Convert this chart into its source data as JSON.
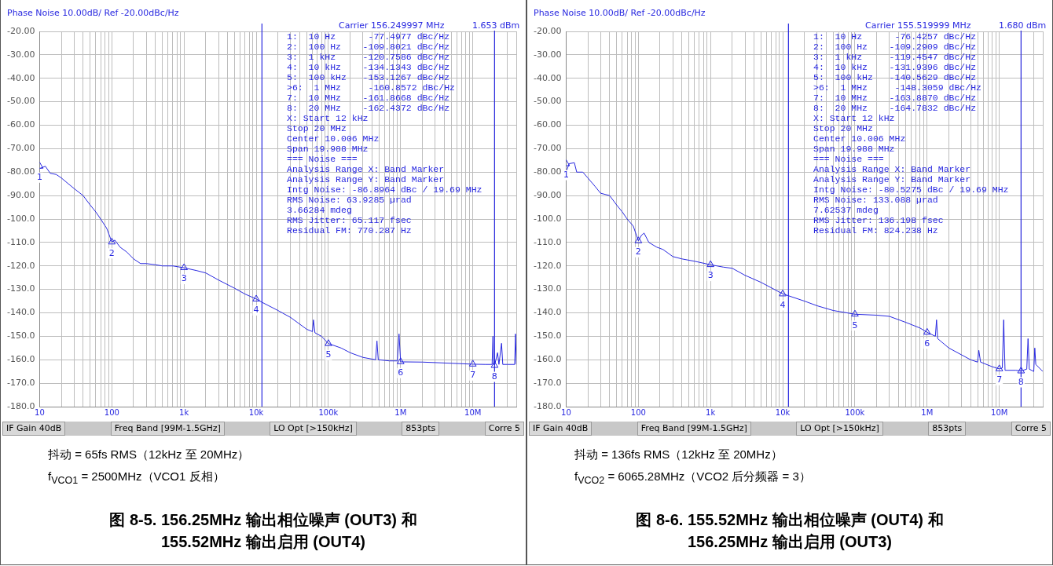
{
  "chart_data": [
    {
      "type": "line",
      "title": "图 8-5. 156.25MHz 输出相位噪声 (OUT3) 和 155.52MHz 输出启用 (OUT4)",
      "subtitle": "Phase Noise 10.00dB/ Ref -20.00dBc/Hz",
      "log": "x",
      "grid": true,
      "legend": false,
      "marker": "none",
      "line_style": "solid",
      "xlim": [
        10,
        40000000
      ],
      "xticks": [
        {
          "value": 10,
          "label": "10"
        },
        {
          "value": 100,
          "label": "100"
        },
        {
          "value": 1000,
          "label": "1k"
        },
        {
          "value": 10000,
          "label": "10k"
        },
        {
          "value": 100000,
          "label": "100k"
        },
        {
          "value": 1000000,
          "label": "1M"
        },
        {
          "value": 10000000,
          "label": "10M"
        }
      ],
      "ylim": [
        -180,
        -20
      ],
      "yticks": [
        {
          "value": -20,
          "label": "-20.00"
        },
        {
          "value": -30,
          "label": "-30.00"
        },
        {
          "value": -40,
          "label": "-40.00"
        },
        {
          "value": -50,
          "label": "-50.00"
        },
        {
          "value": -60,
          "label": "-60.00"
        },
        {
          "value": -70,
          "label": "-70.00"
        },
        {
          "value": -80,
          "label": "-80.00"
        },
        {
          "value": -90,
          "label": "-90.00"
        },
        {
          "value": -100,
          "label": "-100.0"
        },
        {
          "value": -110,
          "label": "-110.0"
        },
        {
          "value": -120,
          "label": "-120.0"
        },
        {
          "value": -130,
          "label": "-130.0"
        },
        {
          "value": -140,
          "label": "-140.0"
        },
        {
          "value": -150,
          "label": "-150.0"
        },
        {
          "value": -160,
          "label": "-160.0"
        },
        {
          "value": -170,
          "label": "-170.0"
        },
        {
          "value": -180,
          "label": "-180.0"
        }
      ],
      "ref_lines": [
        {
          "axis": "x",
          "value": 12000,
          "color": "#2828e0"
        },
        {
          "axis": "x",
          "value": 20000000,
          "color": "#2828e0"
        }
      ],
      "series": [
        {
          "color": "#2828e0",
          "x": [
            10,
            12,
            14,
            17,
            20,
            25,
            30,
            40,
            50,
            60,
            70,
            85,
            100,
            110,
            130,
            160,
            200,
            250,
            300,
            400,
            500,
            700,
            1000,
            1500,
            2000,
            3000,
            5000,
            7000,
            10000,
            12000,
            20000,
            30000,
            50000,
            60000,
            62000,
            65000,
            80000,
            100000,
            150000,
            200000,
            300000,
            450000,
            470000,
            490000,
            700000,
            900000,
            950000,
            1000000,
            2000000,
            5000000,
            10000000,
            15000000,
            18500000,
            19000000,
            19500000,
            20000000,
            22000000,
            23000000,
            25000000,
            26000000,
            30000000,
            38000000,
            39000000,
            40000000
          ],
          "values": [
            -78.5,
            -77.5,
            -80.5,
            -81,
            -82.5,
            -85,
            -87,
            -90,
            -94,
            -97,
            -100,
            -104,
            -109.8,
            -109,
            -112,
            -114,
            -117,
            -119,
            -119,
            -119.5,
            -120,
            -120,
            -120.8,
            -122,
            -123,
            -126,
            -129.5,
            -132,
            -134.1,
            -135.5,
            -139,
            -142,
            -147,
            -148,
            -143,
            -148.5,
            -150,
            -153.1,
            -155,
            -157,
            -159,
            -160,
            -152,
            -160,
            -160.5,
            -160.5,
            -149,
            -160.9,
            -161,
            -161.5,
            -161.9,
            -162,
            -162,
            -150,
            -162,
            -162.4,
            -157,
            -162,
            -153,
            -162,
            -162,
            -162,
            -149,
            -162
          ]
        },
        {
          "type": "scatter",
          "marker": "triangle",
          "color": "#2828e0",
          "x": [
            10,
            100,
            1000,
            10000,
            100000,
            1000000,
            10000000,
            20000000
          ],
          "values": [
            -77.4977,
            -109.8021,
            -120.7586,
            -134.1343,
            -153.1267,
            -160.8572,
            -161.8668,
            -162.4372
          ]
        }
      ],
      "annotations": [
        "Carrier 156.249997 MHz",
        "1.653 dBm",
        "1:  10 Hz      -77.4977 dBc/Hz",
        "2:  100 Hz    -109.8021 dBc/Hz",
        "3:  1 kHz     -120.7586 dBc/Hz",
        "4:  10 kHz    -134.1343 dBc/Hz",
        "5:  100 kHz   -153.1267 dBc/Hz",
        ">6:  1 MHz     -160.8572 dBc/Hz",
        "7:  10 MHz    -161.8668 dBc/Hz",
        "8:  20 MHz    -162.4372 dBc/Hz",
        "X: Start 12 kHz",
        "Stop 20 MHz",
        "Center 10.006 MHz",
        "Span 19.988 MHz",
        "=== Noise ===",
        "Analysis Range X: Band Marker",
        "Analysis Range Y: Band Marker",
        "Intg Noise: -86.8964 dBc / 19.69 MHz",
        "RMS Noise: 63.9285 µrad",
        "3.66284 mdeg",
        "RMS Jitter: 65.117 fsec",
        "Residual FM: 770.287 Hz",
        "IF Gain 40dB",
        "Freq Band [99M-1.5GHz]",
        "LO Opt [>150kHz]",
        "853pts",
        "Corre 5",
        "抖动 = 65fs RMS（12kHz 至 20MHz）",
        "f$_{VCO1}$ = 2500MHz（VCO1 反相）",
        {
          "text": "1",
          "x": 10,
          "y": -77.4977
        },
        {
          "text": "2",
          "x": 100,
          "y": -109.8021
        },
        {
          "text": "3",
          "x": 1000,
          "y": -120.7586
        },
        {
          "text": "4",
          "x": 10000,
          "y": -134.1343
        },
        {
          "text": "5",
          "x": 100000,
          "y": -153.1267
        },
        {
          "text": "6",
          "x": 1000000,
          "y": -160.8572
        },
        {
          "text": "7",
          "x": 10000000,
          "y": -161.8668
        },
        {
          "text": "8",
          "x": 20000000,
          "y": -162.4372
        }
      ]
    },
    {
      "type": "line",
      "title": "图 8-6. 155.52MHz 输出相位噪声 (OUT4) 和 156.25MHz 输出启用 (OUT3)",
      "subtitle": "Phase Noise 10.00dB/ Ref -20.00dBc/Hz",
      "log": "x",
      "grid": true,
      "legend": false,
      "marker": "none",
      "line_style": "solid",
      "xlim": [
        10,
        40000000
      ],
      "xticks": [
        {
          "value": 10,
          "label": "10"
        },
        {
          "value": 100,
          "label": "100"
        },
        {
          "value": 1000,
          "label": "1k"
        },
        {
          "value": 10000,
          "label": "10k"
        },
        {
          "value": 100000,
          "label": "100k"
        },
        {
          "value": 1000000,
          "label": "1M"
        },
        {
          "value": 10000000,
          "label": "10M"
        }
      ],
      "ylim": [
        -180,
        -20
      ],
      "yticks": [
        {
          "value": -20,
          "label": "-20.00"
        },
        {
          "value": -30,
          "label": "-30.00"
        },
        {
          "value": -40,
          "label": "-40.00"
        },
        {
          "value": -50,
          "label": "-50.00"
        },
        {
          "value": -60,
          "label": "-60.00"
        },
        {
          "value": -70,
          "label": "-70.00"
        },
        {
          "value": -80,
          "label": "-80.00"
        },
        {
          "value": -90,
          "label": "-90.00"
        },
        {
          "value": -100,
          "label": "-100.0"
        },
        {
          "value": -110,
          "label": "-110.0"
        },
        {
          "value": -120,
          "label": "-120.0"
        },
        {
          "value": -130,
          "label": "-130.0"
        },
        {
          "value": -140,
          "label": "-140.0"
        },
        {
          "value": -150,
          "label": "-150.0"
        },
        {
          "value": -160,
          "label": "-160.0"
        },
        {
          "value": -170,
          "label": "-170.0"
        },
        {
          "value": -180,
          "label": "-180.0"
        }
      ],
      "ref_lines": [
        {
          "axis": "x",
          "value": 12000,
          "color": "#2828e0"
        },
        {
          "axis": "x",
          "value": 20000000,
          "color": "#2828e0"
        }
      ],
      "series": [
        {
          "color": "#2828e0",
          "x": [
            10,
            11,
            13,
            14,
            17,
            20,
            25,
            30,
            40,
            50,
            60,
            70,
            85,
            100,
            110,
            120,
            140,
            180,
            220,
            300,
            400,
            600,
            1000,
            1500,
            2000,
            3000,
            5000,
            10000,
            20000,
            30000,
            50000,
            100000,
            200000,
            300000,
            500000,
            800000,
            1000000,
            1300000,
            1350000,
            1400000,
            2000000,
            4000000,
            5000000,
            5200000,
            5500000,
            8000000,
            10000000,
            11000000,
            11500000,
            12000000,
            17000000,
            20000000,
            24000000,
            25000000,
            26000000,
            30000000,
            31000000,
            32000000,
            40000000
          ],
          "values": [
            -80,
            -76.4,
            -76,
            -80,
            -80,
            -82.5,
            -86,
            -89,
            -90,
            -94,
            -97,
            -100,
            -103,
            -109.3,
            -107,
            -106,
            -110,
            -112,
            -113,
            -116,
            -117,
            -118,
            -119.5,
            -120.5,
            -121,
            -124,
            -127,
            -131.9,
            -135,
            -137,
            -139,
            -140.6,
            -141,
            -141.5,
            -144,
            -146.5,
            -148.3,
            -150,
            -143,
            -151,
            -155,
            -160,
            -161,
            -156,
            -161,
            -163,
            -163.9,
            -163.5,
            -143,
            -164.5,
            -164.5,
            -164.8,
            -164,
            -151,
            -164,
            -165,
            -155,
            -162,
            -165
          ]
        },
        {
          "type": "scatter",
          "marker": "triangle",
          "color": "#2828e0",
          "x": [
            10,
            100,
            1000,
            10000,
            100000,
            1000000,
            10000000,
            20000000
          ],
          "values": [
            -76.4257,
            -109.2909,
            -119.4547,
            -131.9396,
            -140.5629,
            -148.3059,
            -163.887,
            -164.7832
          ]
        }
      ],
      "annotations": [
        "Carrier 155.519999 MHz",
        "1.680 dBm",
        "1:  10 Hz      -76.4257 dBc/Hz",
        "2:  100 Hz    -109.2909 dBc/Hz",
        "3:  1 kHz     -119.4547 dBc/Hz",
        "4:  10 kHz    -131.9396 dBc/Hz",
        "5:  100 kHz   -140.5629 dBc/Hz",
        ">6:  1 MHz     -148.3059 dBc/Hz",
        "7:  10 MHz    -163.8870 dBc/Hz",
        "8:  20 MHz    -164.7832 dBc/Hz",
        "X: Start 12 kHz",
        "Stop 20 MHz",
        "Center 10.006 MHz",
        "Span 19.988 MHz",
        "=== Noise ===",
        "Analysis Range X: Band Marker",
        "Analysis Range Y: Band Marker",
        "Intg Noise: -80.5275 dBc / 19.69 MHz",
        "RMS Noise: 133.088 µrad",
        "7.62537 mdeg",
        "RMS Jitter: 136.198 fsec",
        "Residual FM: 824.238 Hz",
        "IF Gain 40dB",
        "Freq Band [99M-1.5GHz]",
        "LO Opt [>150kHz]",
        "853pts",
        "Corre 5",
        "抖动 = 136fs RMS（12kHz 至 20MHz）",
        "f$_{VCO2}$ = 6065.28MHz（VCO2 后分频器 = 3）",
        {
          "text": "1",
          "x": 10,
          "y": -76.4257
        },
        {
          "text": "2",
          "x": 100,
          "y": -109.2909
        },
        {
          "text": "3",
          "x": 1000,
          "y": -119.4547
        },
        {
          "text": "4",
          "x": 10000,
          "y": -131.9396
        },
        {
          "text": "5",
          "x": 100000,
          "y": -140.5629
        },
        {
          "text": "6",
          "x": 1000000,
          "y": -148.3059
        },
        {
          "text": "7",
          "x": 10000000,
          "y": -163.887
        },
        {
          "text": "8",
          "x": 20000000,
          "y": -164.7832
        }
      ]
    }
  ]
}
